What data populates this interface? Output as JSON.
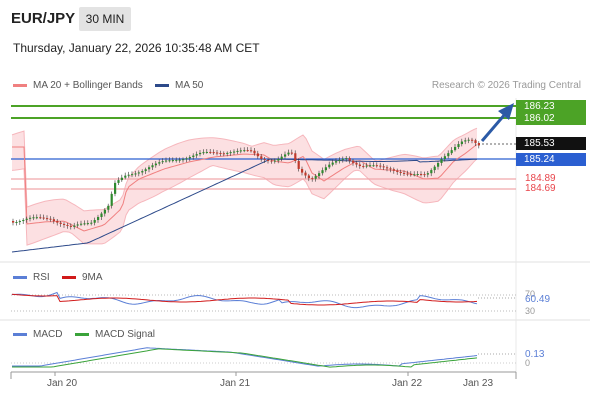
{
  "header": {
    "symbol": "EUR/JPY",
    "timeframe": "30 MIN"
  },
  "datetime": "Thursday, January 22, 2026 10:35:48 AM CET",
  "legend": {
    "ma20_label": "MA 20 + Bollinger Bands",
    "ma20_color": "#f08080",
    "ma50_label": "MA 50",
    "ma50_color": "#2d4a8a"
  },
  "credit": "Research © 2026 Trading Central",
  "levels": {
    "target_high": "186.23",
    "target_low": "186.02",
    "last_price": "185.53",
    "pivot": "185.24",
    "support1": "184.89",
    "support2": "184.69"
  },
  "rsi": {
    "label": "RSI",
    "ma_label": "9MA",
    "value": "60.49",
    "level_70": "70",
    "level_30": "30",
    "rsi_color": "#5b7fd6",
    "ma_color": "#d11a1a"
  },
  "macd": {
    "label": "MACD",
    "signal_label": "MACD Signal",
    "value": "0.13",
    "zero": "0",
    "macd_color": "#5b7fd6",
    "signal_color": "#3aa33a"
  },
  "xaxis": [
    "Jan 20",
    "Jan 21",
    "Jan 22",
    "Jan 23"
  ],
  "colors": {
    "green_level": "#4ca326",
    "blue_level": "#2b5fd1",
    "red_level": "#e8454b",
    "candle_up": "#2f8a2f",
    "candle_down": "#c0392b",
    "arrow": "#2b5aa6"
  }
}
